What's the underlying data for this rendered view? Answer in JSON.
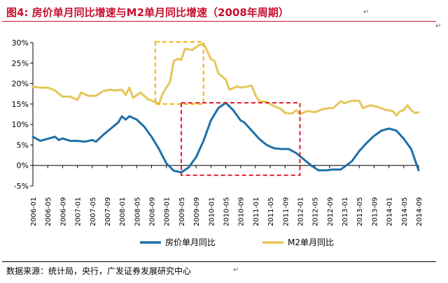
{
  "figure": {
    "title": "图4:  房价单月同比增速与M2单月同比增速（2008年周期）",
    "source": "数据来源：统计局，央行，广发证券发展研究中心",
    "return_mark": "↵"
  },
  "colors": {
    "title": "#c8102e",
    "house": "#1f6fa8",
    "m2": "#e6c65a",
    "box_m2": "#f2b400",
    "box_house": "#e8182b",
    "axis": "#000000"
  },
  "chart_data": {
    "type": "line",
    "title": "",
    "xlabel": "",
    "ylabel": "",
    "ylim": [
      -0.05,
      0.3
    ],
    "yticks": [
      "-5%",
      "0%",
      "5%",
      "10%",
      "15%",
      "20%",
      "25%",
      "30%"
    ],
    "x_tick_labels": [
      "2006-01",
      "2006-05",
      "2006-09",
      "2007-01",
      "2007-05",
      "2007-09",
      "2008-01",
      "2008-05",
      "2008-09",
      "2009-01",
      "2009-05",
      "2009-09",
      "2010-01",
      "2010-05",
      "2010-09",
      "2011-01",
      "2011-05",
      "2011-09",
      "2012-01",
      "2012-05",
      "2012-09",
      "2013-01",
      "2013-05",
      "2013-09",
      "2014-01",
      "2014-05",
      "2014-09"
    ],
    "grid": false,
    "legend": "bottom",
    "series": [
      {
        "name": "房价单月同比",
        "color_key": "house",
        "points": [
          [
            "2006-01",
            0.07
          ],
          [
            "2006-03",
            0.06
          ],
          [
            "2006-05",
            0.065
          ],
          [
            "2006-07",
            0.07
          ],
          [
            "2006-08",
            0.062
          ],
          [
            "2006-09",
            0.066
          ],
          [
            "2006-11",
            0.06
          ],
          [
            "2007-01",
            0.06
          ],
          [
            "2007-03",
            0.058
          ],
          [
            "2007-05",
            0.062
          ],
          [
            "2007-06",
            0.058
          ],
          [
            "2007-08",
            0.075
          ],
          [
            "2007-10",
            0.09
          ],
          [
            "2007-12",
            0.105
          ],
          [
            "2008-01",
            0.12
          ],
          [
            "2008-02",
            0.112
          ],
          [
            "2008-03",
            0.12
          ],
          [
            "2008-05",
            0.112
          ],
          [
            "2008-07",
            0.095
          ],
          [
            "2008-09",
            0.07
          ],
          [
            "2008-11",
            0.04
          ],
          [
            "2009-01",
            0.005
          ],
          [
            "2009-03",
            -0.013
          ],
          [
            "2009-05",
            -0.017
          ],
          [
            "2009-07",
            -0.005
          ],
          [
            "2009-09",
            0.02
          ],
          [
            "2009-11",
            0.06
          ],
          [
            "2010-01",
            0.11
          ],
          [
            "2010-03",
            0.14
          ],
          [
            "2010-05",
            0.153
          ],
          [
            "2010-07",
            0.135
          ],
          [
            "2010-09",
            0.11
          ],
          [
            "2010-10",
            0.105
          ],
          [
            "2010-12",
            0.085
          ],
          [
            "2011-02",
            0.065
          ],
          [
            "2011-04",
            0.05
          ],
          [
            "2011-06",
            0.042
          ],
          [
            "2011-08",
            0.04
          ],
          [
            "2011-10",
            0.04
          ],
          [
            "2011-12",
            0.03
          ],
          [
            "2012-02",
            0.015
          ],
          [
            "2012-04",
            0.0
          ],
          [
            "2012-06",
            -0.012
          ],
          [
            "2012-08",
            -0.012
          ],
          [
            "2012-10",
            -0.01
          ],
          [
            "2012-12",
            -0.01
          ],
          [
            "2013-03",
            0.01
          ],
          [
            "2013-05",
            0.035
          ],
          [
            "2013-07",
            0.055
          ],
          [
            "2013-09",
            0.072
          ],
          [
            "2013-11",
            0.085
          ],
          [
            "2014-01",
            0.09
          ],
          [
            "2014-03",
            0.085
          ],
          [
            "2014-05",
            0.065
          ],
          [
            "2014-07",
            0.04
          ],
          [
            "2014-09",
            -0.012
          ]
        ]
      },
      {
        "name": "M2单月同比",
        "color_key": "m2",
        "points": [
          [
            "2006-01",
            0.192
          ],
          [
            "2006-03",
            0.19
          ],
          [
            "2006-05",
            0.19
          ],
          [
            "2006-07",
            0.183
          ],
          [
            "2006-08",
            0.175
          ],
          [
            "2006-09",
            0.168
          ],
          [
            "2006-11",
            0.168
          ],
          [
            "2007-01",
            0.16
          ],
          [
            "2007-02",
            0.178
          ],
          [
            "2007-04",
            0.17
          ],
          [
            "2007-06",
            0.17
          ],
          [
            "2007-08",
            0.182
          ],
          [
            "2007-10",
            0.185
          ],
          [
            "2007-11",
            0.183
          ],
          [
            "2008-01",
            0.185
          ],
          [
            "2008-02",
            0.172
          ],
          [
            "2008-03",
            0.19
          ],
          [
            "2008-04",
            0.165
          ],
          [
            "2008-06",
            0.178
          ],
          [
            "2008-08",
            0.162
          ],
          [
            "2008-10",
            0.155
          ],
          [
            "2008-11",
            0.15
          ],
          [
            "2008-12",
            0.175
          ],
          [
            "2009-01",
            0.19
          ],
          [
            "2009-02",
            0.205
          ],
          [
            "2009-03",
            0.255
          ],
          [
            "2009-04",
            0.26
          ],
          [
            "2009-05",
            0.258
          ],
          [
            "2009-06",
            0.285
          ],
          [
            "2009-08",
            0.282
          ],
          [
            "2009-10",
            0.295
          ],
          [
            "2009-11",
            0.297
          ],
          [
            "2009-12",
            0.28
          ],
          [
            "2010-01",
            0.26
          ],
          [
            "2010-02",
            0.255
          ],
          [
            "2010-03",
            0.225
          ],
          [
            "2010-05",
            0.21
          ],
          [
            "2010-06",
            0.185
          ],
          [
            "2010-08",
            0.193
          ],
          [
            "2010-09",
            0.19
          ],
          [
            "2010-11",
            0.193
          ],
          [
            "2010-12",
            0.195
          ],
          [
            "2011-01",
            0.172
          ],
          [
            "2011-02",
            0.157
          ],
          [
            "2011-04",
            0.155
          ],
          [
            "2011-06",
            0.145
          ],
          [
            "2011-08",
            0.137
          ],
          [
            "2011-09",
            0.128
          ],
          [
            "2011-11",
            0.127
          ],
          [
            "2011-12",
            0.135
          ],
          [
            "2012-01",
            0.125
          ],
          [
            "2012-03",
            0.133
          ],
          [
            "2012-05",
            0.13
          ],
          [
            "2012-07",
            0.137
          ],
          [
            "2012-09",
            0.14
          ],
          [
            "2012-10",
            0.14
          ],
          [
            "2012-12",
            0.157
          ],
          [
            "2013-01",
            0.152
          ],
          [
            "2013-03",
            0.158
          ],
          [
            "2013-05",
            0.158
          ],
          [
            "2013-06",
            0.14
          ],
          [
            "2013-08",
            0.147
          ],
          [
            "2013-10",
            0.143
          ],
          [
            "2013-12",
            0.136
          ],
          [
            "2014-02",
            0.133
          ],
          [
            "2014-03",
            0.122
          ],
          [
            "2014-04",
            0.132
          ],
          [
            "2014-05",
            0.135
          ],
          [
            "2014-06",
            0.147
          ],
          [
            "2014-07",
            0.135
          ],
          [
            "2014-08",
            0.128
          ],
          [
            "2014-09",
            0.13
          ]
        ]
      }
    ],
    "annotations": [
      {
        "kind": "dashed-box",
        "color_key": "box_m2",
        "x0": "2008-10",
        "x1": "2009-11",
        "y0": 0.15,
        "y1": 0.302
      },
      {
        "kind": "dashed-box",
        "color_key": "box_house",
        "x0": "2009-05",
        "x1": "2012-01",
        "y0": -0.024,
        "y1": 0.153
      }
    ]
  }
}
